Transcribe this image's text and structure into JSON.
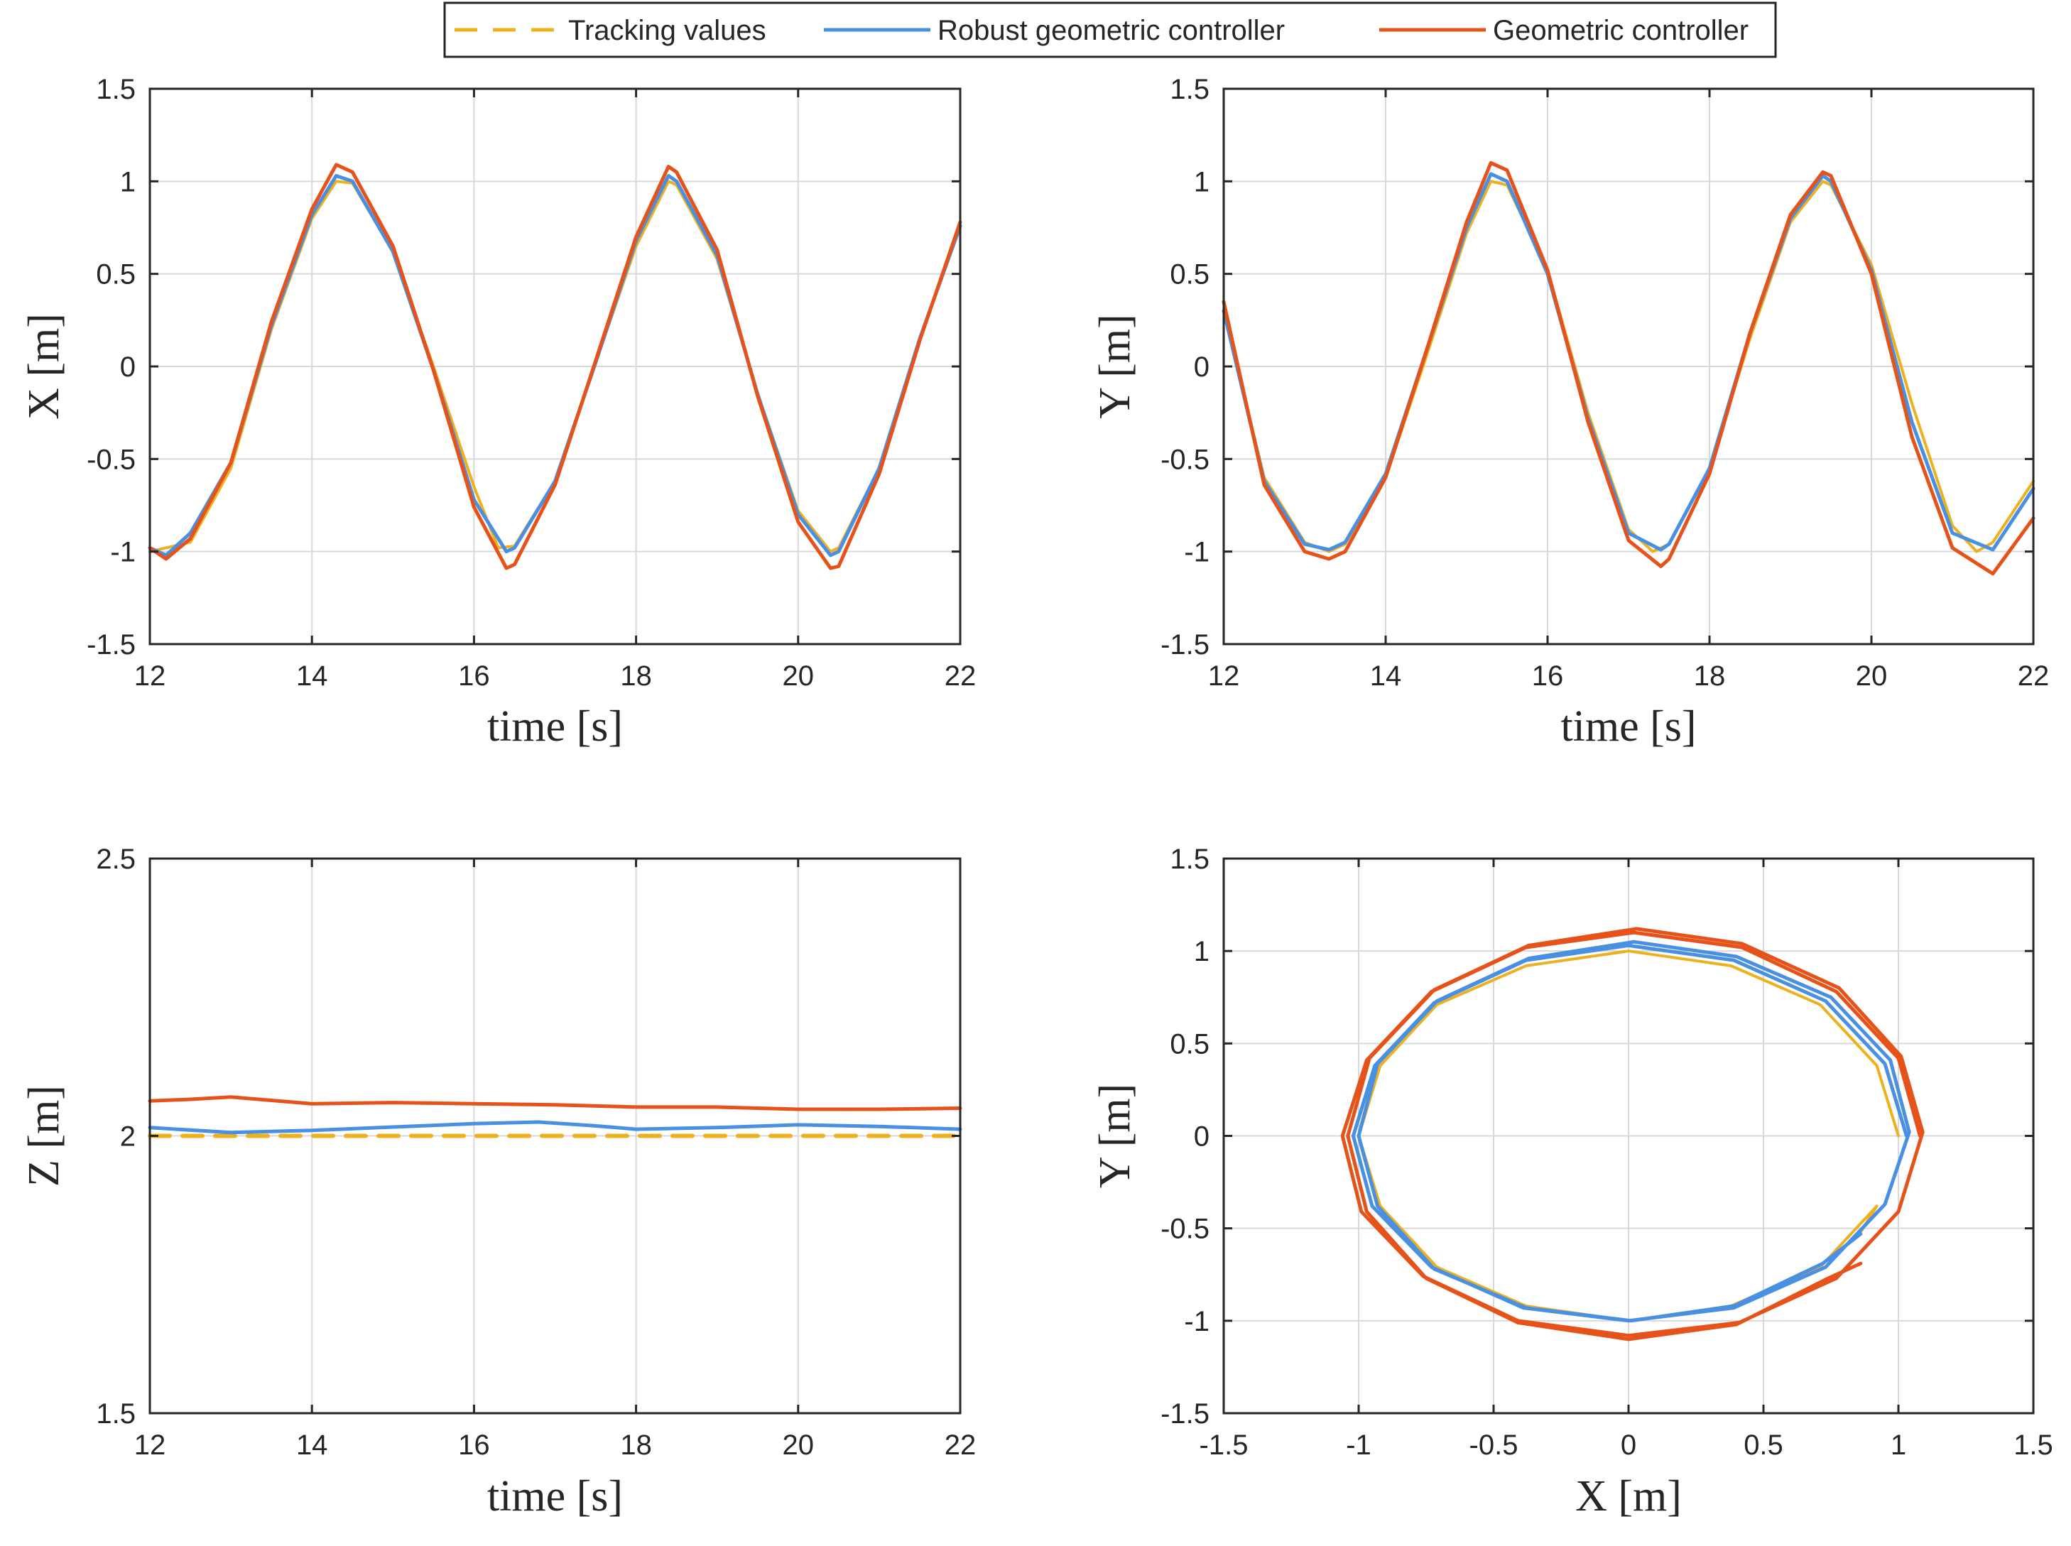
{
  "colors": {
    "tracking": "#EDB120",
    "robust": "#4A90E2",
    "geometric": "#E5531A"
  },
  "legend": {
    "items": [
      {
        "label": "Tracking values",
        "color_key": "tracking",
        "style": "dashed"
      },
      {
        "label": "Robust geometric controller",
        "color_key": "robust",
        "style": "solid"
      },
      {
        "label": "Geometric controller",
        "color_key": "geometric",
        "style": "solid"
      }
    ]
  },
  "chart_data": [
    {
      "id": "x",
      "type": "line",
      "title": "",
      "xlabel": "time [s]",
      "ylabel": "X [m]",
      "xlim": [
        12,
        22
      ],
      "ylim": [
        -1.5,
        1.5
      ],
      "xticks": [
        12,
        14,
        16,
        18,
        20,
        22
      ],
      "yticks": [
        -1.5,
        -1,
        -0.5,
        0,
        0.5,
        1,
        1.5
      ],
      "xtick_labels": [
        "12",
        "14",
        "16",
        "18",
        "20",
        "22"
      ],
      "ytick_labels": [
        "-1.5",
        "-1",
        "-0.5",
        "0",
        "0.5",
        "1",
        "1.5"
      ],
      "grid": true,
      "series": [
        {
          "name": "Tracking values",
          "x": [
            12,
            12.5,
            13,
            13.5,
            14,
            14.3,
            14.5,
            15,
            15.5,
            16,
            16.3,
            16.5,
            17,
            17.5,
            18,
            18.4,
            18.5,
            19,
            19.5,
            20,
            20.4,
            20.5,
            21,
            21.5,
            22
          ],
          "y": [
            -1,
            -0.95,
            -0.55,
            0.2,
            0.8,
            1,
            0.99,
            0.62,
            0.0,
            -0.65,
            -0.98,
            -0.97,
            -0.62,
            0.02,
            0.65,
            1,
            0.98,
            0.58,
            -0.15,
            -0.78,
            -1,
            -0.98,
            -0.55,
            0.15,
            0.75
          ]
        },
        {
          "name": "Robust geometric controller",
          "x": [
            12,
            12.2,
            12.5,
            13,
            13.5,
            14,
            14.3,
            14.5,
            15,
            15.5,
            16,
            16.4,
            16.5,
            17,
            17.5,
            18,
            18.4,
            18.5,
            19,
            19.5,
            20,
            20.4,
            20.5,
            21,
            21.5,
            22
          ],
          "y": [
            -0.98,
            -1.02,
            -0.9,
            -0.52,
            0.22,
            0.82,
            1.03,
            1.0,
            0.62,
            -0.02,
            -0.72,
            -1.0,
            -0.98,
            -0.62,
            0.02,
            0.68,
            1.03,
            1.0,
            0.6,
            -0.15,
            -0.8,
            -1.02,
            -1.0,
            -0.55,
            0.15,
            0.76
          ]
        },
        {
          "name": "Geometric controller",
          "x": [
            12,
            12.2,
            12.5,
            13,
            13.5,
            14,
            14.3,
            14.5,
            15,
            15.5,
            16,
            16.4,
            16.5,
            17,
            17.5,
            18,
            18.4,
            18.5,
            19,
            19.5,
            20,
            20.4,
            20.5,
            21,
            21.5,
            22
          ],
          "y": [
            -0.98,
            -1.04,
            -0.93,
            -0.52,
            0.24,
            0.85,
            1.09,
            1.05,
            0.65,
            -0.02,
            -0.76,
            -1.09,
            -1.07,
            -0.64,
            0.03,
            0.7,
            1.08,
            1.05,
            0.63,
            -0.16,
            -0.84,
            -1.09,
            -1.08,
            -0.58,
            0.14,
            0.78
          ]
        }
      ]
    },
    {
      "id": "y",
      "type": "line",
      "title": "",
      "xlabel": "time [s]",
      "ylabel": "Y [m]",
      "xlim": [
        12,
        22
      ],
      "ylim": [
        -1.5,
        1.5
      ],
      "xticks": [
        12,
        14,
        16,
        18,
        20,
        22
      ],
      "yticks": [
        -1.5,
        -1,
        -0.5,
        0,
        0.5,
        1,
        1.5
      ],
      "xtick_labels": [
        "12",
        "14",
        "16",
        "18",
        "20",
        "22"
      ],
      "ytick_labels": [
        "-1.5",
        "-1",
        "-0.5",
        "0",
        "0.5",
        "1",
        "1.5"
      ],
      "grid": true,
      "series": [
        {
          "name": "Tracking values",
          "x": [
            12,
            12.5,
            13,
            13.3,
            13.5,
            14,
            14.5,
            15,
            15.3,
            15.5,
            16,
            16.5,
            17,
            17.3,
            17.5,
            18,
            18.5,
            19,
            19.4,
            19.5,
            20,
            20.5,
            21,
            21.3,
            21.5,
            22
          ],
          "y": [
            0.3,
            -0.6,
            -0.95,
            -1,
            -0.96,
            -0.6,
            0.05,
            0.72,
            1,
            0.98,
            0.52,
            -0.25,
            -0.88,
            -1,
            -0.96,
            -0.55,
            0.15,
            0.78,
            1,
            0.98,
            0.55,
            -0.2,
            -0.86,
            -1,
            -0.95,
            -0.62
          ]
        },
        {
          "name": "Robust geometric controller",
          "x": [
            12,
            12.5,
            13,
            13.3,
            13.5,
            14,
            14.5,
            15,
            15.3,
            15.5,
            16,
            16.5,
            17,
            17.4,
            17.5,
            18,
            18.5,
            19,
            19.4,
            19.5,
            20,
            20.5,
            21,
            21.5,
            22
          ],
          "y": [
            0.3,
            -0.62,
            -0.96,
            -0.99,
            -0.95,
            -0.58,
            0.08,
            0.75,
            1.04,
            1.0,
            0.5,
            -0.28,
            -0.9,
            -0.99,
            -0.96,
            -0.55,
            0.18,
            0.8,
            1.03,
            1.0,
            0.52,
            -0.3,
            -0.9,
            -0.99,
            -0.66
          ]
        },
        {
          "name": "Geometric controller",
          "x": [
            12,
            12.5,
            13,
            13.3,
            13.5,
            14,
            14.5,
            15,
            15.3,
            15.5,
            16,
            16.5,
            17,
            17.4,
            17.5,
            18,
            18.5,
            19,
            19.4,
            19.5,
            20,
            20.5,
            21,
            21.5,
            22
          ],
          "y": [
            0.35,
            -0.64,
            -1.0,
            -1.04,
            -1.0,
            -0.6,
            0.08,
            0.78,
            1.1,
            1.06,
            0.52,
            -0.3,
            -0.94,
            -1.08,
            -1.04,
            -0.58,
            0.18,
            0.82,
            1.05,
            1.03,
            0.5,
            -0.38,
            -0.98,
            -1.12,
            -0.82
          ]
        }
      ]
    },
    {
      "id": "z",
      "type": "line",
      "title": "",
      "xlabel": "time [s]",
      "ylabel": "Z [m]",
      "xlim": [
        12,
        22
      ],
      "ylim": [
        1.5,
        2.5
      ],
      "xticks": [
        12,
        14,
        16,
        18,
        20,
        22
      ],
      "yticks": [
        1.5,
        2,
        2.5
      ],
      "xtick_labels": [
        "12",
        "14",
        "16",
        "18",
        "20",
        "22"
      ],
      "ytick_labels": [
        "1.5",
        "2",
        "2.5"
      ],
      "grid": true,
      "series": [
        {
          "name": "Tracking values",
          "x": [
            12,
            22
          ],
          "y": [
            2,
            2
          ]
        },
        {
          "name": "Robust geometric controller",
          "x": [
            12,
            13,
            14,
            15,
            16,
            16.8,
            17.5,
            18,
            19,
            20,
            21,
            22
          ],
          "y": [
            2.015,
            2.006,
            2.01,
            2.016,
            2.022,
            2.025,
            2.018,
            2.012,
            2.015,
            2.02,
            2.017,
            2.012
          ]
        },
        {
          "name": "Geometric controller",
          "x": [
            12,
            12.5,
            13,
            13.5,
            14,
            15,
            16,
            17,
            18,
            19,
            20,
            21,
            22
          ],
          "y": [
            2.063,
            2.066,
            2.07,
            2.064,
            2.058,
            2.06,
            2.058,
            2.056,
            2.052,
            2.052,
            2.048,
            2.048,
            2.05
          ]
        }
      ]
    },
    {
      "id": "xy",
      "type": "line",
      "title": "",
      "xlabel": "X [m]",
      "ylabel": "Y [m]",
      "xlim": [
        -1.5,
        1.5
      ],
      "ylim": [
        -1.5,
        1.5
      ],
      "xticks": [
        -1.5,
        -1,
        -0.5,
        0,
        0.5,
        1,
        1.5
      ],
      "yticks": [
        -1.5,
        -1,
        -0.5,
        0,
        0.5,
        1,
        1.5
      ],
      "xtick_labels": [
        "-1.5",
        "-1",
        "-0.5",
        "0",
        "0.5",
        "1",
        "1.5"
      ],
      "ytick_labels": [
        "-1.5",
        "-1",
        "-0.5",
        "0",
        "0.5",
        "1",
        "1.5"
      ],
      "grid": true,
      "series": [
        {
          "name": "Tracking values",
          "x": [
            1.0,
            0.92,
            0.71,
            0.38,
            0.0,
            -0.38,
            -0.71,
            -0.92,
            -1.0,
            -0.92,
            -0.71,
            -0.38,
            0.0,
            0.38,
            0.71,
            0.92,
            0.86
          ],
          "y": [
            0.0,
            0.38,
            0.71,
            0.92,
            1.0,
            0.92,
            0.71,
            0.38,
            0.0,
            -0.38,
            -0.71,
            -0.92,
            -1.0,
            -0.92,
            -0.71,
            -0.38,
            -0.52
          ]
        },
        {
          "name": "Robust geometric controller",
          "x": [
            1.03,
            0.95,
            0.73,
            0.39,
            0.0,
            -0.38,
            -0.72,
            -0.94,
            -1.02,
            -0.95,
            -0.73,
            -0.39,
            0.0,
            0.39,
            0.73,
            0.95,
            1.04,
            0.97,
            0.75,
            0.4,
            0.02,
            -0.37,
            -0.71,
            -0.93,
            -1.0,
            -0.93,
            -0.72,
            -0.38,
            0.01,
            0.39,
            0.72,
            0.86
          ],
          "y": [
            0.0,
            0.39,
            0.73,
            0.95,
            1.03,
            0.95,
            0.72,
            0.38,
            0.0,
            -0.38,
            -0.71,
            -0.93,
            -1.0,
            -0.93,
            -0.71,
            -0.37,
            0.02,
            0.41,
            0.75,
            0.97,
            1.05,
            0.96,
            0.73,
            0.39,
            0.0,
            -0.38,
            -0.72,
            -0.93,
            -1.0,
            -0.92,
            -0.69,
            -0.53
          ]
        },
        {
          "name": "Geometric controller",
          "x": [
            1.08,
            1.0,
            0.77,
            0.42,
            0.02,
            -0.38,
            -0.73,
            -0.97,
            -1.06,
            -0.99,
            -0.76,
            -0.41,
            0.0,
            0.41,
            0.77,
            1.0,
            1.09,
            1.01,
            0.78,
            0.42,
            0.03,
            -0.37,
            -0.72,
            -0.96,
            -1.04,
            -0.97,
            -0.75,
            -0.41,
            0.0,
            0.4,
            0.74,
            0.86
          ],
          "y": [
            0.0,
            0.42,
            0.78,
            1.02,
            1.1,
            1.02,
            0.78,
            0.41,
            0.0,
            -0.41,
            -0.76,
            -1.0,
            -1.08,
            -1.01,
            -0.77,
            -0.41,
            0.02,
            0.43,
            0.8,
            1.04,
            1.12,
            1.03,
            0.79,
            0.42,
            0.0,
            -0.41,
            -0.77,
            -1.01,
            -1.1,
            -1.02,
            -0.77,
            -0.69
          ]
        }
      ]
    }
  ]
}
